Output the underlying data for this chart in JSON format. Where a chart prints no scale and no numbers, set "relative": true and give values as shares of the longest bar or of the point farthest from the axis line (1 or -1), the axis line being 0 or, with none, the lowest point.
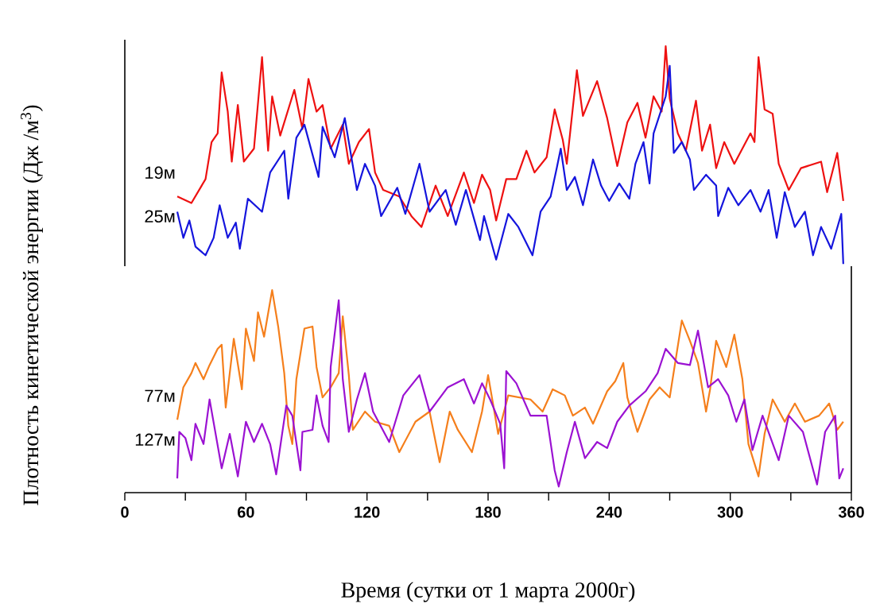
{
  "chart_data": [
    {
      "type": "line",
      "relative": true,
      "xlim": [
        0,
        360
      ],
      "tick_labels": false,
      "ylabel": "Плотность кинетической энергии  (Дж /м$^{3}$)",
      "series": [
        {
          "name": "19м",
          "color": "#ee1111",
          "x": [
            26,
            33,
            40,
            43,
            46,
            48,
            51,
            53,
            56,
            59,
            64,
            68,
            71,
            73,
            77,
            84,
            88,
            91,
            95,
            98,
            102,
            108,
            111,
            116,
            121,
            124,
            128,
            136,
            142,
            147,
            154,
            160,
            168,
            173,
            177,
            181,
            184,
            189,
            194,
            199,
            203,
            209,
            213,
            217,
            219,
            224,
            227,
            234,
            239,
            244,
            249,
            254,
            258,
            262,
            266,
            268,
            270,
            274,
            278,
            283,
            286,
            290,
            293,
            297,
            302,
            310,
            312,
            314,
            317,
            321,
            324,
            329,
            335,
            345,
            348,
            353,
            356
          ],
          "values": [
            0.31,
            0.28,
            0.39,
            0.56,
            0.6,
            0.88,
            0.7,
            0.47,
            0.73,
            0.47,
            0.53,
            0.95,
            0.52,
            0.77,
            0.59,
            0.8,
            0.62,
            0.85,
            0.7,
            0.73,
            0.53,
            0.64,
            0.46,
            0.56,
            0.62,
            0.42,
            0.34,
            0.31,
            0.22,
            0.17,
            0.36,
            0.22,
            0.42,
            0.28,
            0.41,
            0.34,
            0.2,
            0.39,
            0.39,
            0.52,
            0.42,
            0.49,
            0.71,
            0.57,
            0.46,
            0.89,
            0.68,
            0.84,
            0.67,
            0.45,
            0.65,
            0.74,
            0.58,
            0.77,
            0.7,
            1.0,
            0.76,
            0.6,
            0.52,
            0.75,
            0.52,
            0.64,
            0.44,
            0.56,
            0.46,
            0.6,
            0.56,
            0.95,
            0.71,
            0.69,
            0.46,
            0.34,
            0.44,
            0.47,
            0.33,
            0.51,
            0.29
          ]
        },
        {
          "name": "25м",
          "color": "#1515dd",
          "x": [
            26,
            29,
            32,
            35,
            40,
            44,
            47,
            51,
            55,
            57,
            61,
            68,
            72,
            79,
            81,
            85,
            89,
            96,
            98,
            104,
            109,
            115,
            119,
            124,
            127,
            135,
            139,
            146,
            151,
            159,
            164,
            169,
            176,
            178,
            184,
            190,
            195,
            202,
            206,
            211,
            214,
            216,
            219,
            223,
            227,
            232,
            236,
            240,
            245,
            250,
            253,
            257,
            260,
            262,
            268,
            270,
            272,
            276,
            280,
            282,
            288,
            293,
            294,
            299,
            304,
            310,
            315,
            319,
            323,
            327,
            332,
            337,
            341,
            345,
            350,
            355,
            356
          ],
          "values": [
            0.24,
            0.12,
            0.2,
            0.08,
            0.04,
            0.12,
            0.27,
            0.12,
            0.19,
            0.07,
            0.3,
            0.24,
            0.42,
            0.52,
            0.3,
            0.58,
            0.64,
            0.4,
            0.63,
            0.49,
            0.67,
            0.34,
            0.46,
            0.36,
            0.22,
            0.35,
            0.23,
            0.46,
            0.24,
            0.34,
            0.18,
            0.34,
            0.11,
            0.22,
            0.02,
            0.23,
            0.17,
            0.04,
            0.24,
            0.31,
            0.44,
            0.53,
            0.34,
            0.4,
            0.27,
            0.48,
            0.36,
            0.29,
            0.37,
            0.3,
            0.46,
            0.56,
            0.37,
            0.6,
            0.77,
            0.91,
            0.51,
            0.56,
            0.48,
            0.34,
            0.41,
            0.36,
            0.22,
            0.35,
            0.27,
            0.34,
            0.24,
            0.34,
            0.12,
            0.33,
            0.17,
            0.24,
            0.04,
            0.17,
            0.07,
            0.23,
            0.0
          ]
        }
      ]
    },
    {
      "type": "line",
      "relative": true,
      "xlim": [
        0,
        360
      ],
      "tick_labels": "x",
      "xlabel": "Время (сутки от 1 марта 2000г)",
      "xticks": [
        0,
        {
          "value": 30,
          "label": null
        },
        60,
        {
          "value": 90,
          "label": null
        },
        120,
        {
          "value": 150,
          "label": null
        },
        180,
        {
          "value": 210,
          "label": null
        },
        240,
        {
          "value": 270,
          "label": null
        },
        300,
        {
          "value": 330,
          "label": null
        },
        360
      ],
      "series": [
        {
          "name": "77м",
          "color": "#f57f1c",
          "x": [
            26,
            29,
            33,
            35,
            39,
            42,
            46,
            48,
            50,
            54,
            58,
            60,
            64,
            66,
            69,
            73,
            76,
            79,
            81,
            83,
            85,
            89,
            93,
            95,
            98,
            102,
            106,
            108,
            111,
            113,
            119,
            124,
            131,
            136,
            144,
            151,
            156,
            161,
            165,
            172,
            177,
            180,
            185,
            190,
            201,
            207,
            212,
            218,
            222,
            228,
            232,
            239,
            243,
            247,
            249,
            254,
            260,
            265,
            270,
            276,
            280,
            284,
            288,
            290,
            293,
            298,
            302,
            306,
            309,
            314,
            317,
            321,
            327,
            332,
            337,
            344,
            349,
            353,
            356
          ],
          "values": [
            0.36,
            0.52,
            0.59,
            0.64,
            0.56,
            0.63,
            0.71,
            0.73,
            0.42,
            0.76,
            0.51,
            0.81,
            0.65,
            0.89,
            0.77,
            1.0,
            0.82,
            0.59,
            0.33,
            0.24,
            0.56,
            0.81,
            0.82,
            0.62,
            0.47,
            0.52,
            0.59,
            0.87,
            0.58,
            0.31,
            0.4,
            0.35,
            0.33,
            0.2,
            0.35,
            0.4,
            0.15,
            0.4,
            0.31,
            0.2,
            0.4,
            0.58,
            0.29,
            0.48,
            0.46,
            0.4,
            0.51,
            0.48,
            0.38,
            0.42,
            0.34,
            0.5,
            0.55,
            0.64,
            0.47,
            0.3,
            0.46,
            0.52,
            0.47,
            0.85,
            0.75,
            0.64,
            0.4,
            0.51,
            0.75,
            0.62,
            0.78,
            0.56,
            0.24,
            0.08,
            0.29,
            0.46,
            0.35,
            0.44,
            0.35,
            0.38,
            0.44,
            0.31,
            0.35
          ]
        },
        {
          "name": "127м",
          "color": "#9b12d2",
          "x": [
            26,
            27,
            30,
            33,
            35,
            39,
            42,
            45,
            48,
            52,
            56,
            60,
            64,
            68,
            72,
            75,
            80,
            83,
            87,
            88,
            93,
            95,
            98,
            101,
            102,
            106,
            108,
            111,
            115,
            119,
            123,
            131,
            138,
            146,
            151,
            160,
            168,
            173,
            177,
            181,
            186,
            188,
            189,
            194,
            201,
            209,
            213,
            215,
            219,
            223,
            228,
            234,
            239,
            244,
            250,
            258,
            264,
            268,
            274,
            280,
            284,
            289,
            294,
            299,
            303,
            307,
            311,
            316,
            324,
            329,
            336,
            343,
            347,
            352,
            354,
            356
          ],
          "values": [
            0.07,
            0.3,
            0.27,
            0.16,
            0.34,
            0.24,
            0.46,
            0.29,
            0.12,
            0.29,
            0.08,
            0.35,
            0.25,
            0.34,
            0.24,
            0.09,
            0.43,
            0.38,
            0.11,
            0.3,
            0.31,
            0.48,
            0.33,
            0.25,
            0.62,
            0.95,
            0.56,
            0.3,
            0.46,
            0.59,
            0.4,
            0.25,
            0.48,
            0.58,
            0.4,
            0.52,
            0.56,
            0.44,
            0.54,
            0.46,
            0.34,
            0.12,
            0.6,
            0.54,
            0.38,
            0.38,
            0.11,
            0.03,
            0.2,
            0.35,
            0.17,
            0.25,
            0.22,
            0.35,
            0.43,
            0.5,
            0.59,
            0.71,
            0.64,
            0.63,
            0.8,
            0.52,
            0.56,
            0.48,
            0.35,
            0.46,
            0.21,
            0.38,
            0.16,
            0.38,
            0.3,
            0.04,
            0.3,
            0.38,
            0.07,
            0.12
          ]
        }
      ]
    }
  ]
}
